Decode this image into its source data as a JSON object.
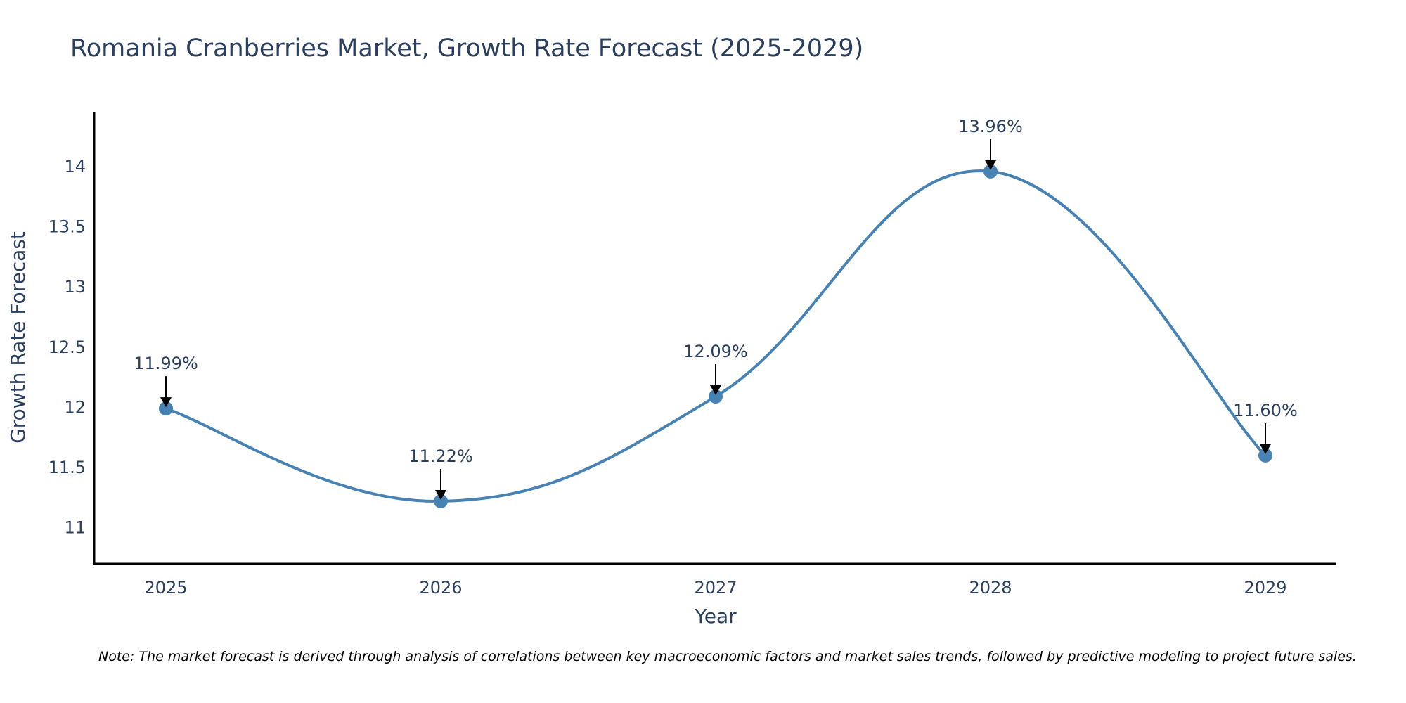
{
  "chart_data": {
    "type": "line",
    "title": "Romania Cranberries Market, Growth Rate Forecast (2025-2029)",
    "xlabel": "Year",
    "ylabel": "Growth Rate Forecast",
    "categories": [
      "2025",
      "2026",
      "2027",
      "2028",
      "2029"
    ],
    "series": [
      {
        "name": "Growth Rate Forecast",
        "values": [
          11.99,
          11.22,
          12.09,
          13.96,
          11.6
        ],
        "labels": [
          "11.99%",
          "11.22%",
          "12.09%",
          "13.96%",
          "11.60%"
        ]
      }
    ],
    "ylim": [
      10.7,
      14.45
    ],
    "yticks": [
      11,
      11.5,
      12,
      12.5,
      13,
      13.5,
      14
    ],
    "ytick_labels": [
      "11",
      "11.5",
      "12",
      "12.5",
      "13",
      "13.5",
      "14"
    ],
    "grid": false,
    "line_color": "#4682b4",
    "annotation_color": "#000000",
    "note": "Note: The market forecast is derived through analysis of correlations between key macroeconomic factors and market sales trends, followed by predictive modeling to project future sales."
  }
}
